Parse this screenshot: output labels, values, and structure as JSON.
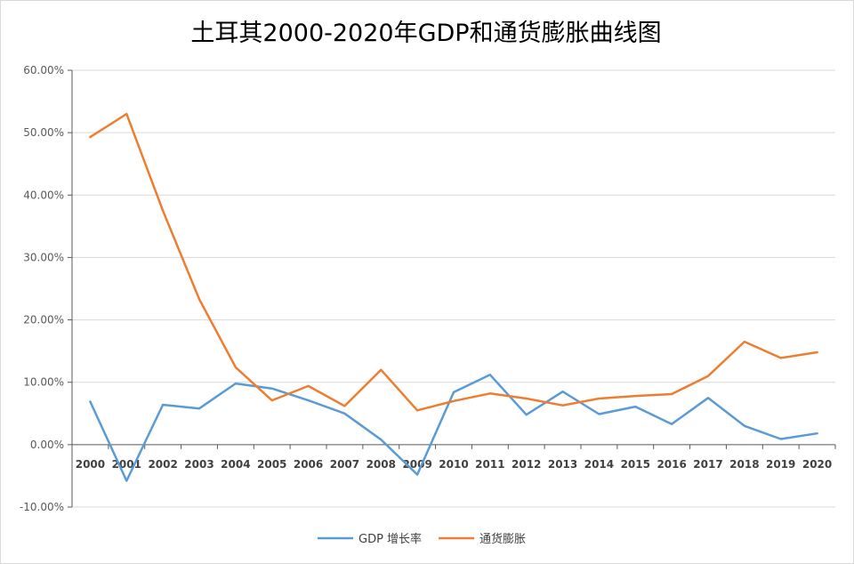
{
  "chart_data": {
    "type": "line",
    "title": "土耳其2000-2020年GDP和通货膨胀曲线图",
    "xlabel": "",
    "ylabel": "",
    "categories": [
      "2000",
      "2001",
      "2002",
      "2003",
      "2004",
      "2005",
      "2006",
      "2007",
      "2008",
      "2009",
      "2010",
      "2011",
      "2012",
      "2013",
      "2014",
      "2015",
      "2016",
      "2017",
      "2018",
      "2019",
      "2020"
    ],
    "ylim": [
      -10,
      60
    ],
    "yticks": [
      -10,
      0,
      10,
      20,
      30,
      40,
      50,
      60
    ],
    "ytick_labels": [
      "-10.00%",
      "0.00%",
      "10.00%",
      "20.00%",
      "30.00%",
      "40.00%",
      "50.00%",
      "60.00%"
    ],
    "grid": true,
    "legend_position": "bottom",
    "series": [
      {
        "name": "GDP 增长率",
        "color": "#5b9bd5",
        "values": [
          6.9,
          -5.8,
          6.4,
          5.8,
          9.8,
          9.0,
          7.1,
          5.0,
          0.8,
          -4.8,
          8.4,
          11.2,
          4.8,
          8.5,
          4.9,
          6.1,
          3.3,
          7.5,
          3.0,
          0.9,
          1.8
        ]
      },
      {
        "name": "通货膨胀",
        "color": "#ed7d31",
        "values": [
          49.3,
          53.0,
          37.5,
          23.3,
          12.4,
          7.1,
          9.4,
          6.2,
          12.0,
          5.5,
          7.0,
          8.2,
          7.4,
          6.3,
          7.4,
          7.8,
          8.1,
          11.0,
          16.5,
          13.9,
          14.8
        ]
      }
    ]
  }
}
